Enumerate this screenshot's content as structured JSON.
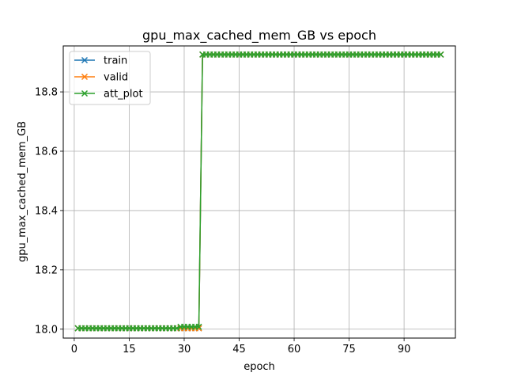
{
  "chart_data": {
    "type": "line",
    "title": "gpu_max_cached_mem_GB vs epoch",
    "xlabel": "epoch",
    "ylabel": "gpu_max_cached_mem_GB",
    "xlim": [
      -3,
      104
    ],
    "ylim": [
      17.97,
      18.955
    ],
    "xticks": [
      0,
      15,
      30,
      45,
      60,
      75,
      90
    ],
    "yticks": [
      18.0,
      18.2,
      18.4,
      18.6,
      18.8
    ],
    "ytick_labels": [
      "18.0",
      "18.2",
      "18.4",
      "18.6",
      "18.8"
    ],
    "grid": true,
    "legend_position": "upper-left",
    "marker": "x",
    "series": [
      {
        "name": "train",
        "color": "#1f77b4",
        "segments": [
          [
            1,
            34,
            18.003
          ],
          [
            35,
            100,
            18.926
          ]
        ]
      },
      {
        "name": "valid",
        "color": "#ff7f0e",
        "segments": [
          [
            1,
            34,
            18.003
          ],
          [
            35,
            100,
            18.926
          ]
        ]
      },
      {
        "name": "att_plot",
        "color": "#2ca02c",
        "segments": [
          [
            1,
            28,
            18.003
          ],
          [
            29,
            34,
            18.008
          ],
          [
            35,
            100,
            18.926
          ]
        ]
      }
    ]
  }
}
